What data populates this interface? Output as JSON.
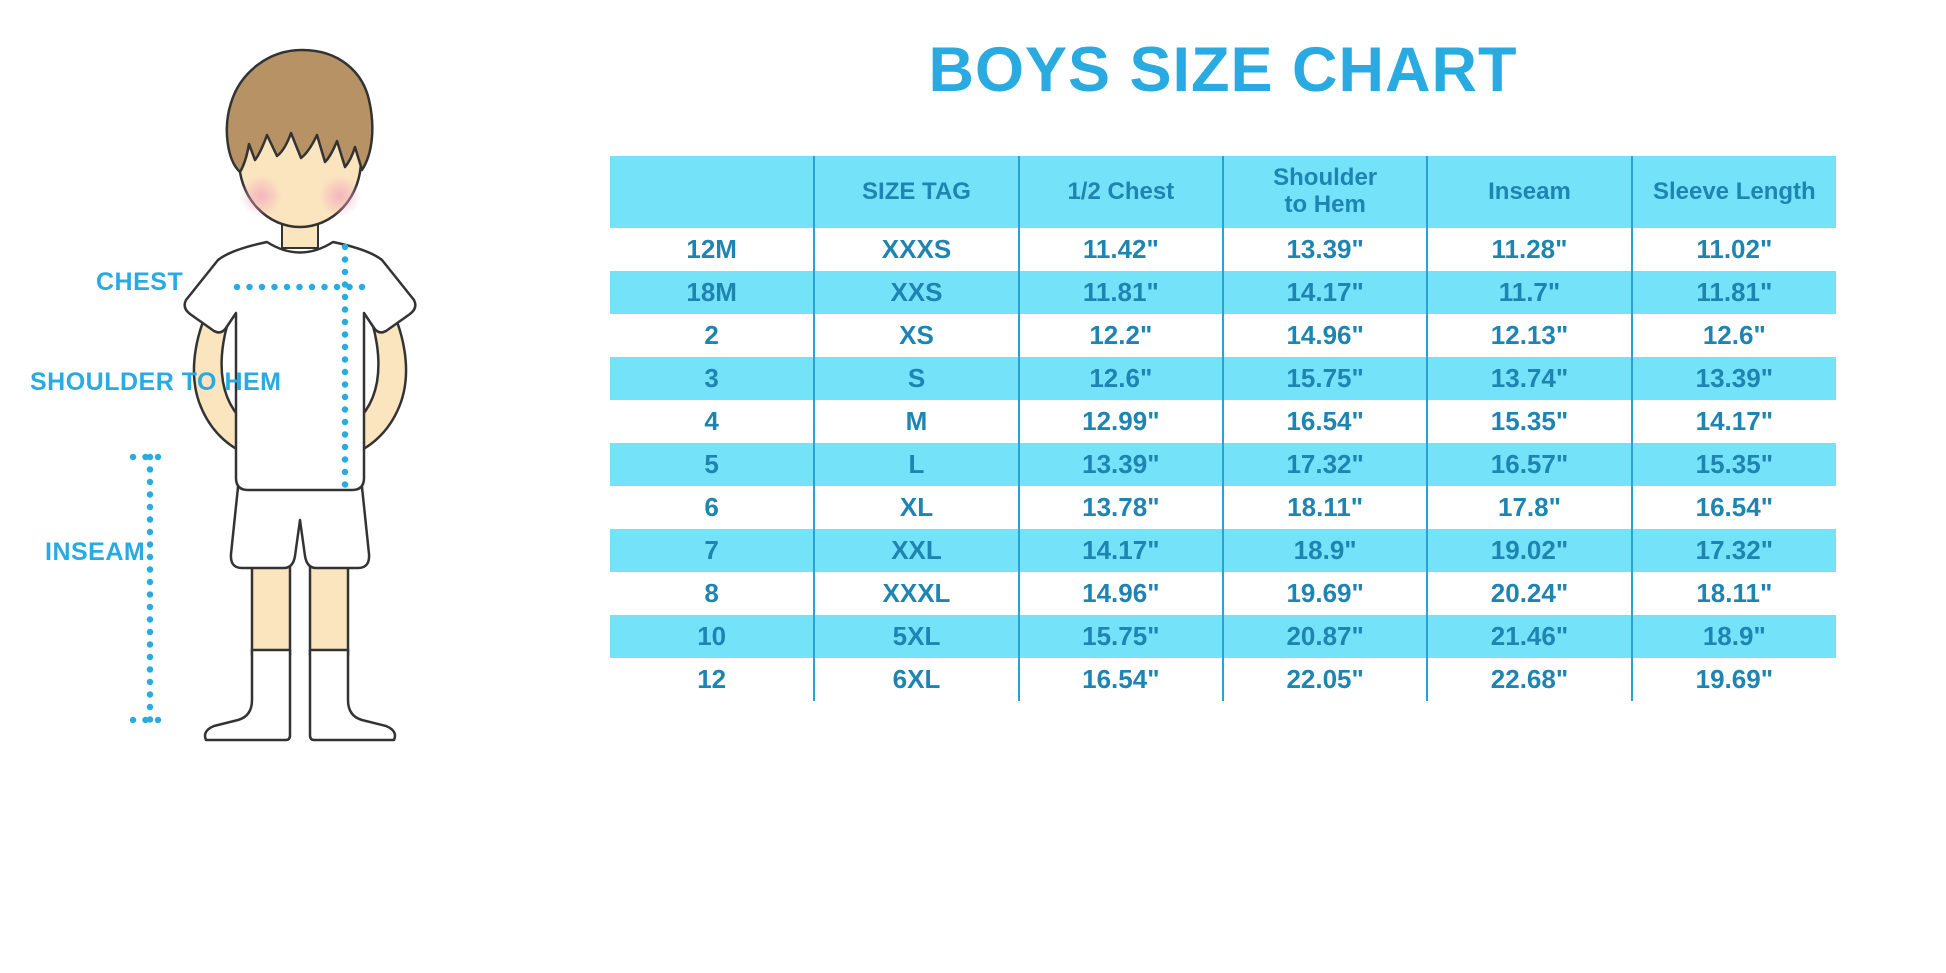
{
  "chart_data": {
    "type": "table",
    "title": "BOYS SIZE CHART",
    "columns": [
      "",
      "SIZE TAG",
      "1/2 Chest",
      "Shoulder to Hem",
      "Inseam",
      "Sleeve Length"
    ],
    "rows": [
      [
        "12M",
        "XXXS",
        "11.42\"",
        "13.39\"",
        "11.28\"",
        "11.02\""
      ],
      [
        "18M",
        "XXS",
        "11.81\"",
        "14.17\"",
        "11.7\"",
        "11.81\""
      ],
      [
        "2",
        "XS",
        "12.2\"",
        "14.96\"",
        "12.13\"",
        "12.6\""
      ],
      [
        "3",
        "S",
        "12.6\"",
        "15.75\"",
        "13.74\"",
        "13.39\""
      ],
      [
        "4",
        "M",
        "12.99\"",
        "16.54\"",
        "15.35\"",
        "14.17\""
      ],
      [
        "5",
        "L",
        "13.39\"",
        "17.32\"",
        "16.57\"",
        "15.35\""
      ],
      [
        "6",
        "XL",
        "13.78\"",
        "18.11\"",
        "17.8\"",
        "16.54\""
      ],
      [
        "7",
        "XXL",
        "14.17\"",
        "18.9\"",
        "19.02\"",
        "17.32\""
      ],
      [
        "8",
        "XXXL",
        "14.96\"",
        "19.69\"",
        "20.24\"",
        "18.11\""
      ],
      [
        "10",
        "5XL",
        "15.75\"",
        "20.87\"",
        "21.46\"",
        "18.9\""
      ],
      [
        "12",
        "6XL",
        "16.54\"",
        "22.05\"",
        "22.68\"",
        "19.69\""
      ]
    ]
  },
  "diagram": {
    "chest_label": "CHEST",
    "shoulder_to_hem_label": "SHOULDER TO HEM",
    "inseam_label": "INSEAM"
  },
  "colors": {
    "accent_blue": "#29ABE2",
    "stripe_cyan": "#74E3F9",
    "cell_text": "#1E84B2",
    "grid_line": "#29A3D1",
    "skin": "#FBE5BF",
    "hair": "#B79265"
  }
}
